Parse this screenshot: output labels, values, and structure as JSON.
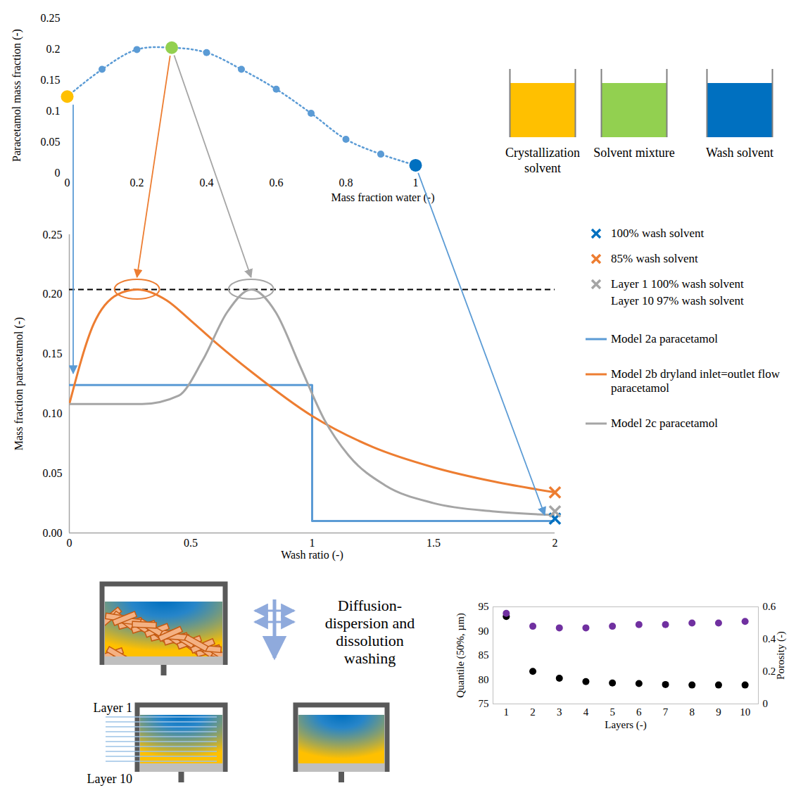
{
  "chart_data": [
    {
      "type": "line",
      "x_label": "Mass fraction water (-)",
      "y_label": "Paracetamol mass fraction (-)",
      "x": [
        0,
        0.1,
        0.2,
        0.3,
        0.4,
        0.5,
        0.6,
        0.7,
        0.8,
        0.9,
        1
      ],
      "xlim": [
        0,
        1
      ],
      "xticks": [
        0,
        0.2,
        0.4,
        0.6,
        0.8,
        1
      ],
      "ylim": [
        0,
        0.25
      ],
      "yticks": [
        0,
        0.05,
        0.1,
        0.15,
        0.2,
        0.25
      ],
      "series": [
        {
          "color": "#5B9BD5",
          "colors": [
            "#FFC000",
            "#5B9BD5",
            "#5B9BD5",
            "#92D050",
            "#5B9BD5",
            "#5B9BD5",
            "#5B9BD5",
            "#5B9BD5",
            "#5B9BD5",
            "#5B9BD5",
            "#0070C0"
          ],
          "values": [
            0.123,
            0.167,
            0.199,
            0.202,
            0.194,
            0.167,
            0.135,
            0.096,
            0.054,
            0.03,
            0.012
          ],
          "line_style": "dotted",
          "marker": "circle"
        }
      ]
    },
    {
      "type": "line",
      "x_label": "Wash ratio (-)",
      "y_label": "Mass fraction paracetamol (-)",
      "xlim": [
        0,
        2
      ],
      "xticks": [
        0,
        0.5,
        1,
        1.5,
        2
      ],
      "ylim": [
        0,
        0.25
      ],
      "yticks": [
        {
          "value": 0,
          "label": "0.00"
        },
        0.05,
        {
          "value": 0.1,
          "label": "0.10"
        },
        0.15,
        {
          "value": 0.2,
          "label": "0.20"
        },
        0.25
      ],
      "legend": "right",
      "reference_line": {
        "value": 0.204,
        "line_style": "dashed",
        "color": "#000000"
      },
      "series": [
        {
          "name": "Model 2a paracetamol",
          "color": "#5B9BD5",
          "type": "step",
          "line_style": "solid",
          "x": [
            0,
            1,
            2
          ],
          "values": [
            0.124,
            0.01,
            0.01
          ]
        },
        {
          "name": "Model 2b dryland inlet=outlet flow paracetamol",
          "color": "#ED7D31",
          "type": "line",
          "line_style": "solid",
          "x": [
            0,
            0.1,
            0.2,
            0.28,
            0.4,
            0.5,
            0.6,
            0.75,
            1,
            1.25,
            1.5,
            1.75,
            2
          ],
          "values": [
            0.108,
            0.175,
            0.2,
            0.204,
            0.195,
            0.178,
            0.16,
            0.135,
            0.098,
            0.072,
            0.055,
            0.043,
            0.034
          ]
        },
        {
          "name": "Model 2c paracetamol",
          "color": "#A5A5A5",
          "type": "line",
          "line_style": "solid",
          "x": [
            0,
            0.3,
            0.45,
            0.55,
            0.65,
            0.75,
            0.85,
            0.95,
            1.05,
            1.15,
            1.3,
            1.5,
            1.75,
            2
          ],
          "values": [
            0.108,
            0.108,
            0.115,
            0.145,
            0.185,
            0.204,
            0.185,
            0.14,
            0.095,
            0.065,
            0.04,
            0.025,
            0.018,
            0.015
          ]
        }
      ],
      "end_markers": [
        {
          "name": "100% wash solvent",
          "color": "#0070C0",
          "x": 2,
          "y": 0.012,
          "marker": "x"
        },
        {
          "name": "85% wash solvent",
          "color": "#ED7D31",
          "x": 2,
          "y": 0.034,
          "marker": "x"
        },
        {
          "name": "Layer 1 100% wash solvent",
          "color": "#A5A5A5",
          "x": 2,
          "y": 0.018,
          "marker": "x"
        }
      ],
      "legend_note": "Layer 10 97% wash solvent"
    },
    {
      "type": "scatter",
      "x_label": "Layers (-)",
      "y_label": "Quantile (50%, µm)",
      "y2_label": "Porosity (-)",
      "x": [
        1,
        2,
        3,
        4,
        5,
        6,
        7,
        8,
        9,
        10
      ],
      "xlim": [
        0.5,
        10.5
      ],
      "xticks": [
        1,
        2,
        3,
        4,
        5,
        6,
        7,
        8,
        9,
        10
      ],
      "ylim": [
        75,
        95
      ],
      "yticks": [
        75,
        80,
        85,
        90,
        95
      ],
      "y2lim": [
        0,
        0.6
      ],
      "y2ticks": [
        0,
        0.2,
        0.4,
        0.6
      ],
      "series": [
        {
          "color": "#000000",
          "marker": "circle",
          "values": [
            93,
            81.7,
            80.3,
            79.6,
            79.3,
            79.2,
            79,
            78.9,
            78.9,
            78.9
          ]
        },
        {
          "color": "#7030A0",
          "marker": "circle",
          "axis": "y2",
          "values": [
            0.56,
            0.48,
            0.47,
            0.47,
            0.48,
            0.49,
            0.49,
            0.5,
            0.5,
            0.51
          ]
        }
      ]
    }
  ],
  "diagram": {
    "beakers": [
      {
        "label": "Crystallization solvent",
        "color": "#FFC000"
      },
      {
        "label": "Solvent mixture",
        "color": "#92D050"
      },
      {
        "label": "Wash solvent",
        "color": "#0070C0"
      }
    ],
    "washing_label": "Diffusion-dispersion and dissolution washing",
    "layer_labels": [
      "Layer 1",
      "Layer 10"
    ]
  }
}
